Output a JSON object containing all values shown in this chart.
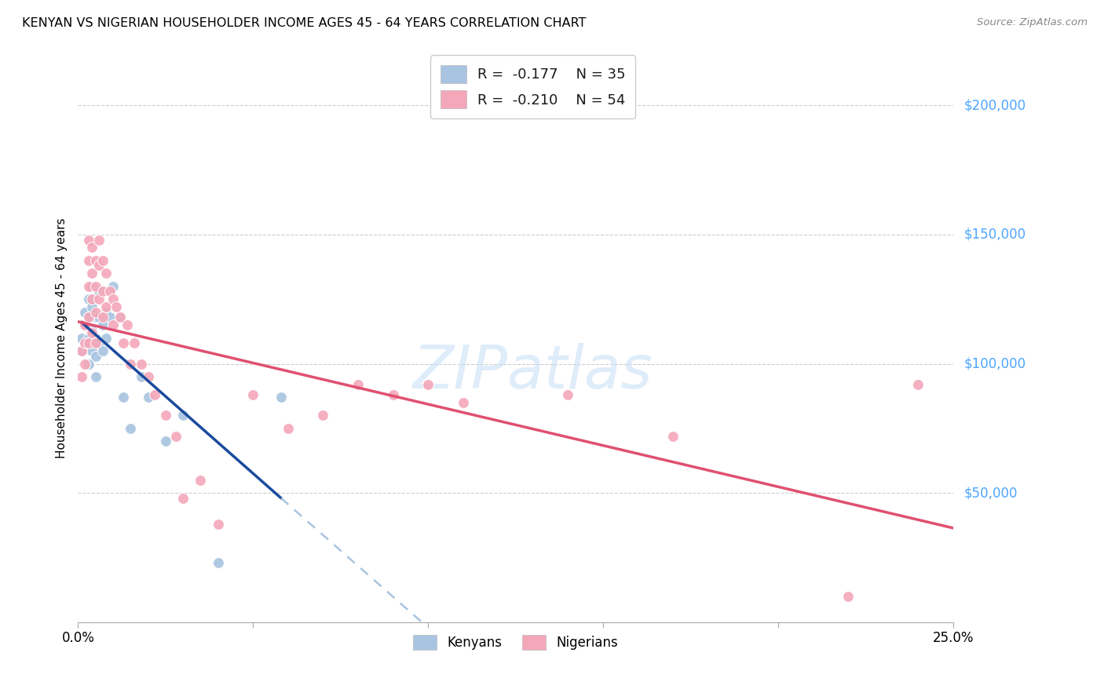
{
  "title": "KENYAN VS NIGERIAN HOUSEHOLDER INCOME AGES 45 - 64 YEARS CORRELATION CHART",
  "source": "Source: ZipAtlas.com",
  "ylabel": "Householder Income Ages 45 - 64 years",
  "xlim": [
    0.0,
    0.25
  ],
  "ylim": [
    0,
    220000
  ],
  "yticks": [
    0,
    50000,
    100000,
    150000,
    200000
  ],
  "ytick_labels": [
    "",
    "$50,000",
    "$100,000",
    "$150,000",
    "$200,000"
  ],
  "xtick_labels": [
    "0.0%",
    "",
    "",
    "",
    "",
    "25.0%"
  ],
  "xticks": [
    0.0,
    0.05,
    0.1,
    0.15,
    0.2,
    0.25
  ],
  "kenyan_color": "#a8c4e0",
  "nigerian_color": "#f4a7b9",
  "kenyan_line_color": "#1a4a9e",
  "nigerian_line_color": "#e05070",
  "kenyan_dashed_color": "#a8c4e0",
  "legend_r_kenyan": "-0.177",
  "legend_n_kenyan": "35",
  "legend_r_nigerian": "-0.210",
  "legend_n_nigerian": "54",
  "watermark": "ZIPatlas",
  "background_color": "#ffffff",
  "kenyan_x": [
    0.001,
    0.001,
    0.002,
    0.002,
    0.002,
    0.003,
    0.003,
    0.003,
    0.003,
    0.004,
    0.004,
    0.004,
    0.004,
    0.005,
    0.005,
    0.005,
    0.005,
    0.006,
    0.006,
    0.006,
    0.007,
    0.007,
    0.008,
    0.008,
    0.009,
    0.01,
    0.012,
    0.013,
    0.015,
    0.018,
    0.02,
    0.025,
    0.03,
    0.04,
    0.058
  ],
  "kenyan_y": [
    110000,
    105000,
    120000,
    115000,
    107000,
    125000,
    118000,
    110000,
    100000,
    130000,
    122000,
    113000,
    105000,
    118000,
    110000,
    103000,
    95000,
    128000,
    118000,
    108000,
    115000,
    105000,
    120000,
    110000,
    118000,
    130000,
    118000,
    87000,
    75000,
    95000,
    87000,
    70000,
    80000,
    23000,
    87000
  ],
  "nigerian_x": [
    0.001,
    0.001,
    0.002,
    0.002,
    0.002,
    0.003,
    0.003,
    0.003,
    0.003,
    0.003,
    0.004,
    0.004,
    0.004,
    0.004,
    0.005,
    0.005,
    0.005,
    0.005,
    0.006,
    0.006,
    0.006,
    0.007,
    0.007,
    0.007,
    0.008,
    0.008,
    0.009,
    0.01,
    0.01,
    0.011,
    0.012,
    0.013,
    0.014,
    0.015,
    0.016,
    0.018,
    0.02,
    0.022,
    0.025,
    0.028,
    0.03,
    0.035,
    0.04,
    0.05,
    0.06,
    0.07,
    0.08,
    0.09,
    0.1,
    0.11,
    0.14,
    0.17,
    0.22,
    0.24
  ],
  "nigerian_y": [
    105000,
    95000,
    115000,
    108000,
    100000,
    148000,
    140000,
    130000,
    118000,
    108000,
    145000,
    135000,
    125000,
    112000,
    140000,
    130000,
    120000,
    108000,
    148000,
    138000,
    125000,
    140000,
    128000,
    118000,
    135000,
    122000,
    128000,
    125000,
    115000,
    122000,
    118000,
    108000,
    115000,
    100000,
    108000,
    100000,
    95000,
    88000,
    80000,
    72000,
    48000,
    55000,
    38000,
    88000,
    75000,
    80000,
    92000,
    88000,
    92000,
    85000,
    88000,
    72000,
    10000,
    92000
  ]
}
